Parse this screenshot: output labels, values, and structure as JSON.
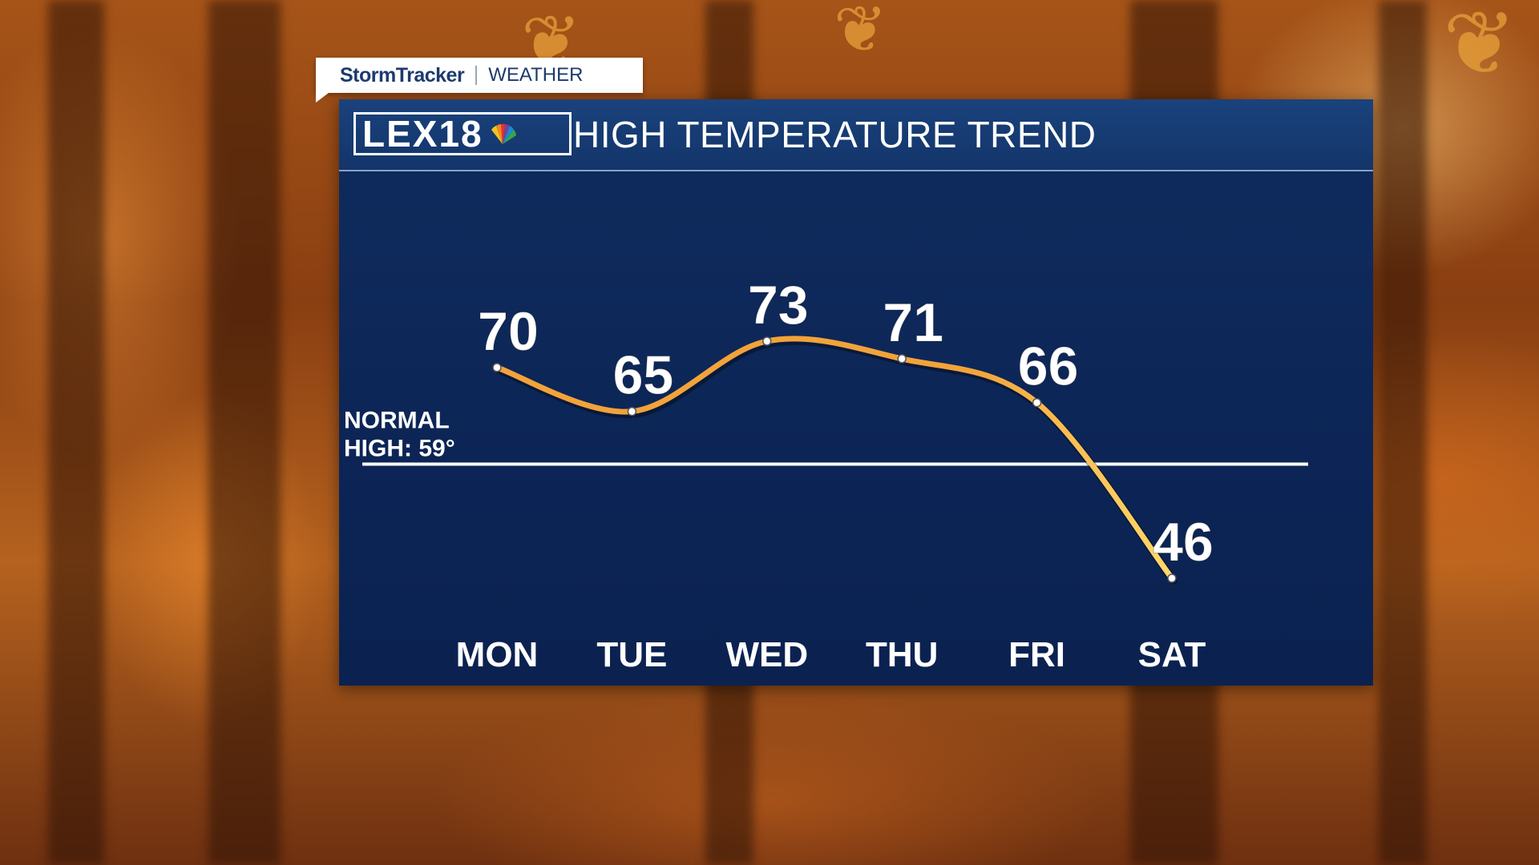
{
  "brand": {
    "name": "StormTracker",
    "section": "WEATHER"
  },
  "logo": {
    "text": "LEX18"
  },
  "chart_data": {
    "type": "line",
    "title": "HIGH TEMPERATURE TREND",
    "categories": [
      "MON",
      "TUE",
      "WED",
      "THU",
      "FRI",
      "SAT"
    ],
    "values": [
      70,
      65,
      73,
      71,
      66,
      46
    ],
    "value_labels": [
      "70",
      "65",
      "73",
      "71",
      "66",
      "46"
    ],
    "reference_line": {
      "value": 59,
      "label_line1": "NORMAL",
      "label_line2": "HIGH: 59°"
    },
    "line_colors": {
      "start": "#f2a33a",
      "end": "#ffd96a"
    },
    "grid": false,
    "legend": "none"
  },
  "colors": {
    "panel": "#0c2556",
    "header": "#13356a",
    "text": "#ffffff"
  }
}
